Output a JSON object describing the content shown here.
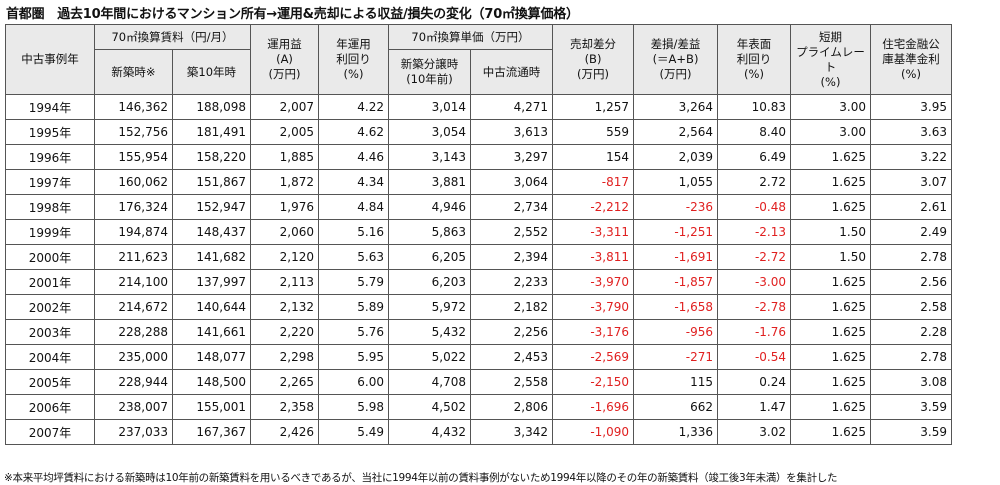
{
  "title": "首都圏　過去10年間におけるマンション所有→運用&売却による収益/損失の変化（70㎡換算価格）",
  "header": {
    "case_year": "中古事例年",
    "rent_group": "70㎡換算賃料（円/月）",
    "rent_new": "新築時※",
    "rent_10y": "築10年時",
    "op_profit": "運用益\n(A)\n(万円)",
    "op_yield": "年運用\n利回り\n(%)",
    "price_group": "70㎡換算単価（万円）",
    "price_new": "新築分譲時\n(10年前)",
    "price_used": "中古流通時",
    "sale_diff": "売却差分\n(B)\n(万円)",
    "net": "差損/差益\n(＝A+B)\n(万円)",
    "annual_yield": "年表面\n利回り\n(%)",
    "prime_rate": "短期\nプライムレート\n(%)",
    "housing_rate": "住宅金融公\n庫基準金利\n(%)"
  },
  "rows": [
    {
      "year": "1994年",
      "rent_new": "146,362",
      "rent_10y": "188,098",
      "op_profit": "2,007",
      "op_yield": "4.22",
      "price_new": "3,014",
      "price_used": "4,271",
      "sale_diff": "1,257",
      "net": "3,264",
      "annual_yield": "10.83",
      "prime_rate": "3.00",
      "housing_rate": "3.95"
    },
    {
      "year": "1995年",
      "rent_new": "152,756",
      "rent_10y": "181,491",
      "op_profit": "2,005",
      "op_yield": "4.62",
      "price_new": "3,054",
      "price_used": "3,613",
      "sale_diff": "559",
      "net": "2,564",
      "annual_yield": "8.40",
      "prime_rate": "3.00",
      "housing_rate": "3.63"
    },
    {
      "year": "1996年",
      "rent_new": "155,954",
      "rent_10y": "158,220",
      "op_profit": "1,885",
      "op_yield": "4.46",
      "price_new": "3,143",
      "price_used": "3,297",
      "sale_diff": "154",
      "net": "2,039",
      "annual_yield": "6.49",
      "prime_rate": "1.625",
      "housing_rate": "3.22"
    },
    {
      "year": "1997年",
      "rent_new": "160,062",
      "rent_10y": "151,867",
      "op_profit": "1,872",
      "op_yield": "4.34",
      "price_new": "3,881",
      "price_used": "3,064",
      "sale_diff": "-817",
      "net": "1,055",
      "annual_yield": "2.72",
      "prime_rate": "1.625",
      "housing_rate": "3.07"
    },
    {
      "year": "1998年",
      "rent_new": "176,324",
      "rent_10y": "152,947",
      "op_profit": "1,976",
      "op_yield": "4.84",
      "price_new": "4,946",
      "price_used": "2,734",
      "sale_diff": "-2,212",
      "net": "-236",
      "annual_yield": "-0.48",
      "prime_rate": "1.625",
      "housing_rate": "2.61"
    },
    {
      "year": "1999年",
      "rent_new": "194,874",
      "rent_10y": "148,437",
      "op_profit": "2,060",
      "op_yield": "5.16",
      "price_new": "5,863",
      "price_used": "2,552",
      "sale_diff": "-3,311",
      "net": "-1,251",
      "annual_yield": "-2.13",
      "prime_rate": "1.50",
      "housing_rate": "2.49"
    },
    {
      "year": "2000年",
      "rent_new": "211,623",
      "rent_10y": "141,682",
      "op_profit": "2,120",
      "op_yield": "5.63",
      "price_new": "6,205",
      "price_used": "2,394",
      "sale_diff": "-3,811",
      "net": "-1,691",
      "annual_yield": "-2.72",
      "prime_rate": "1.50",
      "housing_rate": "2.78"
    },
    {
      "year": "2001年",
      "rent_new": "214,100",
      "rent_10y": "137,997",
      "op_profit": "2,113",
      "op_yield": "5.79",
      "price_new": "6,203",
      "price_used": "2,233",
      "sale_diff": "-3,970",
      "net": "-1,857",
      "annual_yield": "-3.00",
      "prime_rate": "1.625",
      "housing_rate": "2.56"
    },
    {
      "year": "2002年",
      "rent_new": "214,672",
      "rent_10y": "140,644",
      "op_profit": "2,132",
      "op_yield": "5.89",
      "price_new": "5,972",
      "price_used": "2,182",
      "sale_diff": "-3,790",
      "net": "-1,658",
      "annual_yield": "-2.78",
      "prime_rate": "1.625",
      "housing_rate": "2.58"
    },
    {
      "year": "2003年",
      "rent_new": "228,288",
      "rent_10y": "141,661",
      "op_profit": "2,220",
      "op_yield": "5.76",
      "price_new": "5,432",
      "price_used": "2,256",
      "sale_diff": "-3,176",
      "net": "-956",
      "annual_yield": "-1.76",
      "prime_rate": "1.625",
      "housing_rate": "2.28"
    },
    {
      "year": "2004年",
      "rent_new": "235,000",
      "rent_10y": "148,077",
      "op_profit": "2,298",
      "op_yield": "5.95",
      "price_new": "5,022",
      "price_used": "2,453",
      "sale_diff": "-2,569",
      "net": "-271",
      "annual_yield": "-0.54",
      "prime_rate": "1.625",
      "housing_rate": "2.78"
    },
    {
      "year": "2005年",
      "rent_new": "228,944",
      "rent_10y": "148,500",
      "op_profit": "2,265",
      "op_yield": "6.00",
      "price_new": "4,708",
      "price_used": "2,558",
      "sale_diff": "-2,150",
      "net": "115",
      "annual_yield": "0.24",
      "prime_rate": "1.625",
      "housing_rate": "3.08"
    },
    {
      "year": "2006年",
      "rent_new": "238,007",
      "rent_10y": "155,001",
      "op_profit": "2,358",
      "op_yield": "5.98",
      "price_new": "4,502",
      "price_used": "2,806",
      "sale_diff": "-1,696",
      "net": "662",
      "annual_yield": "1.47",
      "prime_rate": "1.625",
      "housing_rate": "3.59"
    },
    {
      "year": "2007年",
      "rent_new": "237,033",
      "rent_10y": "167,367",
      "op_profit": "2,426",
      "op_yield": "5.49",
      "price_new": "4,432",
      "price_used": "3,342",
      "sale_diff": "-1,090",
      "net": "1,336",
      "annual_yield": "3.02",
      "prime_rate": "1.625",
      "housing_rate": "3.59"
    }
  ],
  "note": "※本来平均坪賃料における新築時は10年前の新築賃料を用いるべきであるが、当社に1994年以前の賃料事例がないため1994年以降のその年の新築賃料（竣工後3年未満）を集計した",
  "colors": {
    "negative": "#e02020",
    "header_bg": "#eaeaea",
    "border": "#555555"
  }
}
